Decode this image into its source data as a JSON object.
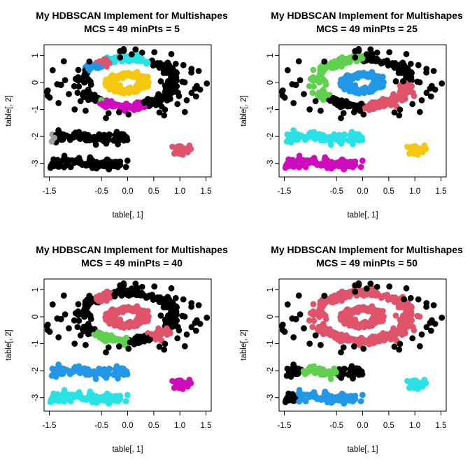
{
  "colors": {
    "noise": "#000000",
    "red": "#DF536B",
    "green": "#61D04F",
    "blue": "#2297E6",
    "cyan": "#28E2E5",
    "magenta": "#CD0BBC",
    "yellow": "#F5C710",
    "gray": "#9E9E9E"
  },
  "chart_data": [
    {
      "type": "scatter",
      "title": "My HDBSCAN Implement for Multishapes",
      "subtitle": "MCS =  49  minPts =  5",
      "xlabel": "table[, 1]",
      "ylabel": "table[, 2]",
      "xlim": [
        -1.6,
        1.6
      ],
      "ylim": [
        -3.5,
        1.4
      ],
      "x_ticks": [
        "-1.5",
        "-0.5",
        "0.0",
        "0.5",
        "1.0",
        "1.5"
      ],
      "y_ticks": [
        "1",
        "0",
        "-1",
        "-2",
        "-3"
      ],
      "assignment": {
        "outer_ring": [
          [
            "black",
            0
          ],
          [
            "cyan",
            60
          ],
          [
            "red",
            115
          ],
          [
            "black",
            212
          ],
          [
            "green",
            230
          ],
          [
            "black",
            290
          ],
          [
            "magenta",
            235
          ],
          [
            "black",
            200
          ],
          [
            "blue",
            130
          ],
          [
            "black",
            150
          ]
        ],
        "inner_ring": "yellow",
        "bar_a": [
          [
            "gray",
            -1.5
          ],
          [
            "black",
            -1.4
          ]
        ],
        "bar_b": [
          [
            "black",
            -1.5
          ]
        ],
        "blob": "red",
        "scatter": "black"
      }
    },
    {
      "type": "scatter",
      "title": "My HDBSCAN Implement for Multishapes",
      "subtitle": "MCS =  49  minPts =  25",
      "xlabel": "table[, 1]",
      "ylabel": "table[, 2]",
      "xlim": [
        -1.6,
        1.6
      ],
      "ylim": [
        -3.5,
        1.4
      ],
      "x_ticks": [
        "-1.5",
        "-0.5",
        "0.0",
        "0.5",
        "1.0",
        "1.5"
      ],
      "y_ticks": [
        "1",
        "0",
        "-1",
        "-2",
        "-3"
      ],
      "assignment": {
        "outer_ring": [
          [
            "black",
            0
          ],
          [
            "green",
            90
          ],
          [
            "black",
            225
          ],
          [
            "red",
            270
          ],
          [
            "black",
            20
          ]
        ],
        "inner_ring": "blue",
        "bar_a": [
          [
            "cyan",
            -1.5
          ]
        ],
        "bar_b": [
          [
            "magenta",
            -1.5
          ]
        ],
        "blob": "yellow",
        "scatter": "black"
      }
    },
    {
      "type": "scatter",
      "title": "My HDBSCAN Implement for Multishapes",
      "subtitle": "MCS =  49  minPts =  40",
      "xlabel": "table[, 1]",
      "ylabel": "table[, 2]",
      "xlim": [
        -1.6,
        1.6
      ],
      "ylim": [
        -3.5,
        1.4
      ],
      "x_ticks": [
        "-1.5",
        "-0.5",
        "0.0",
        "0.5",
        "1.0",
        "1.5"
      ],
      "y_ticks": [
        "1",
        "0",
        "-1",
        "-2",
        "-3"
      ],
      "assignment": {
        "outer_ring": [
          [
            "black",
            0
          ],
          [
            "red",
            110
          ],
          [
            "black",
            135
          ],
          [
            "green",
            225
          ],
          [
            "black",
            270
          ],
          [
            "red",
            300
          ],
          [
            "black",
            330
          ]
        ],
        "inner_ring": "red",
        "bar_a": [
          [
            "blue",
            -1.5
          ]
        ],
        "bar_b": [
          [
            "cyan",
            -1.5
          ]
        ],
        "blob": "magenta",
        "scatter": "black"
      }
    },
    {
      "type": "scatter",
      "title": "My HDBSCAN Implement for Multishapes",
      "subtitle": "MCS =  49  minPts =  50",
      "xlabel": "table[, 1]",
      "ylabel": "table[, 2]",
      "xlim": [
        -1.6,
        1.6
      ],
      "ylim": [
        -3.5,
        1.4
      ],
      "x_ticks": [
        "-1.5",
        "-0.5",
        "0.0",
        "0.5",
        "1.0",
        "1.5"
      ],
      "y_ticks": [
        "1",
        "0",
        "-1",
        "-2",
        "-3"
      ],
      "assignment": {
        "outer_ring": [
          [
            "red",
            0
          ]
        ],
        "inner_ring": "red",
        "bar_a": [
          [
            "black",
            -1.5
          ],
          [
            "green",
            -1.15
          ],
          [
            "black",
            -0.5
          ]
        ],
        "bar_b": [
          [
            "black",
            -1.5
          ],
          [
            "blue",
            -1.25
          ]
        ],
        "blob": "cyan",
        "scatter": "black"
      }
    }
  ]
}
